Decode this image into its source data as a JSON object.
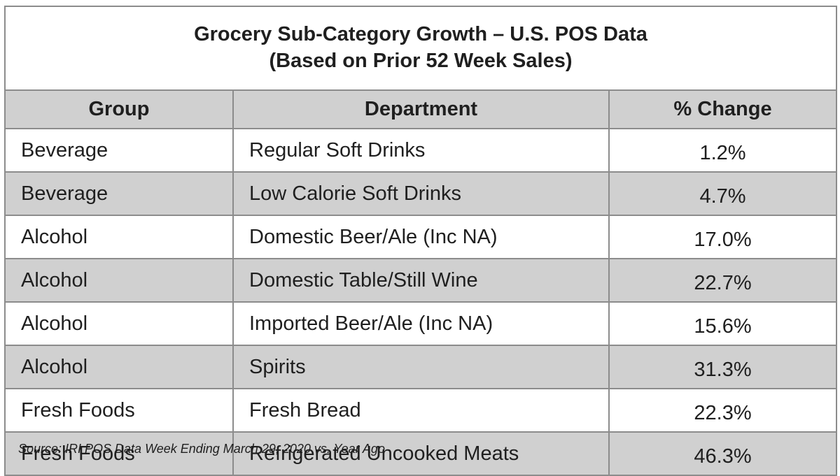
{
  "chart_data": {
    "type": "table",
    "title": "Grocery Sub-Category Growth – U.S. POS Data",
    "subtitle": "(Based on Prior 52 Week Sales)",
    "columns": [
      "Group",
      "Department",
      "% Change"
    ],
    "rows": [
      {
        "group": "Beverage",
        "department": "Regular Soft Drinks",
        "change": "1.2%"
      },
      {
        "group": "Beverage",
        "department": "Low Calorie Soft Drinks",
        "change": "4.7%"
      },
      {
        "group": "Alcohol",
        "department": "Domestic Beer/Ale (Inc NA)",
        "change": "17.0%"
      },
      {
        "group": "Alcohol",
        "department": "Domestic Table/Still Wine",
        "change": "22.7%"
      },
      {
        "group": "Alcohol",
        "department": "Imported Beer/Ale (Inc NA)",
        "change": "15.6%"
      },
      {
        "group": "Alcohol",
        "department": "Spirits",
        "change": "31.3%"
      },
      {
        "group": "Fresh Foods",
        "department": "Fresh Bread",
        "change": "22.3%"
      },
      {
        "group": "Fresh Foods",
        "department": "Refrigerated Uncooked Meats",
        "change": "46.3%"
      }
    ],
    "source": "Source: IRI POS Data Week Ending March 29, 2020 vs. Year Ago"
  }
}
